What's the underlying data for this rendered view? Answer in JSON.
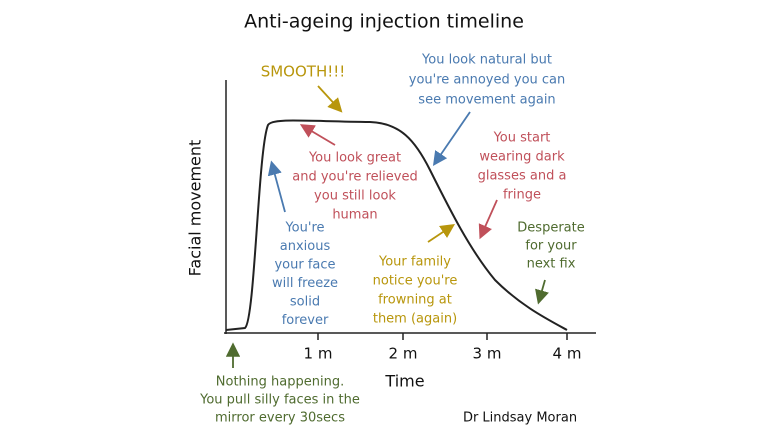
{
  "title": "Anti-ageing injection timeline",
  "y_axis_label": "Facial movement",
  "x_axis_label": "Time",
  "x_ticks": [
    "1 m",
    "2 m",
    "3 m",
    "4 m"
  ],
  "annotations": [
    {
      "lines": [
        "SMOOTH!!!"
      ]
    },
    {
      "lines": [
        "You look natural but",
        "you're annoyed you can",
        "see movement again"
      ]
    },
    {
      "lines": [
        "You look great",
        "and you're relieved",
        "you still look",
        "human"
      ]
    },
    {
      "lines": [
        "You start",
        "wearing dark",
        "glasses and a",
        "fringe"
      ]
    },
    {
      "lines": [
        "You're",
        "anxious",
        "your face",
        "will freeze",
        "solid",
        "forever"
      ]
    },
    {
      "lines": [
        "Your family",
        "notice you're",
        "frowning at",
        "them (again)"
      ]
    },
    {
      "lines": [
        "Desperate",
        "for your",
        "next fix"
      ]
    },
    {
      "lines": [
        "Nothing happening.",
        "You pull silly faces in the",
        "mirror every 30secs"
      ]
    }
  ],
  "author": "Dr Lindsay Moran"
}
